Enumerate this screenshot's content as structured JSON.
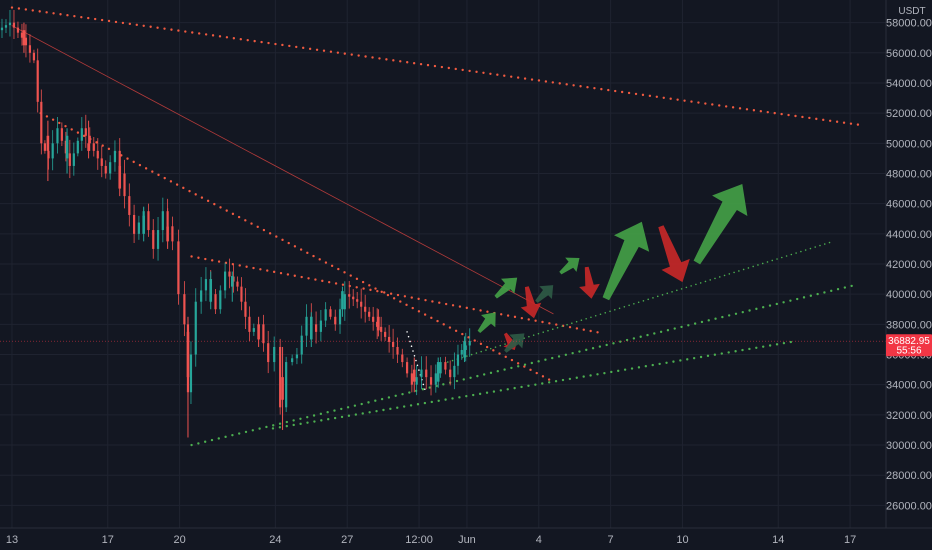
{
  "chart_data": {
    "type": "candlestick",
    "symbol_quote": "USDT",
    "y_unit_label": "USDT",
    "ylim": [
      24500,
      59500
    ],
    "y_ticks": [
      "58000.00",
      "56000.00",
      "54000.00",
      "52000.00",
      "50000.00",
      "48000.00",
      "46000.00",
      "44000.00",
      "42000.00",
      "40000.00",
      "38000.00",
      "36000.00",
      "34000.00",
      "32000.00",
      "30000.00",
      "28000.00",
      "26000.00"
    ],
    "x_tick_labels": [
      "13",
      "17",
      "20",
      "24",
      "27",
      "12:00",
      "Jun",
      "4",
      "7",
      "10",
      "14",
      "17"
    ],
    "x_tick_index": [
      0,
      4,
      7,
      11,
      14,
      17,
      19,
      22,
      25,
      28,
      32,
      35
    ],
    "xlim_index": [
      -0.5,
      36.5
    ],
    "current_price": {
      "label": "36882.95",
      "countdown": "55:56",
      "value": 36882.95
    },
    "price_path": [
      {
        "x": -0.5,
        "y": 57500
      },
      {
        "x": 0,
        "y": 58000
      },
      {
        "x": 0.5,
        "y": 57000
      },
      {
        "x": 1,
        "y": 55500
      },
      {
        "x": 1.3,
        "y": 50000
      },
      {
        "x": 1.6,
        "y": 49000
      },
      {
        "x": 2,
        "y": 51000
      },
      {
        "x": 2.5,
        "y": 48500
      },
      {
        "x": 3,
        "y": 51000
      },
      {
        "x": 3.5,
        "y": 49500
      },
      {
        "x": 4,
        "y": 48000
      },
      {
        "x": 4.4,
        "y": 49500
      },
      {
        "x": 4.8,
        "y": 46500
      },
      {
        "x": 5.2,
        "y": 44000
      },
      {
        "x": 5.6,
        "y": 45500
      },
      {
        "x": 6,
        "y": 43000
      },
      {
        "x": 6.4,
        "y": 45500
      },
      {
        "x": 6.8,
        "y": 43500
      },
      {
        "x": 7.1,
        "y": 40000
      },
      {
        "x": 7.3,
        "y": 38000
      },
      {
        "x": 7.4,
        "y": 33500
      },
      {
        "x": 7.55,
        "y": 36000
      },
      {
        "x": 7.8,
        "y": 39500
      },
      {
        "x": 8.2,
        "y": 41000
      },
      {
        "x": 8.6,
        "y": 39000
      },
      {
        "x": 9,
        "y": 41500
      },
      {
        "x": 9.5,
        "y": 40500
      },
      {
        "x": 10,
        "y": 37500
      },
      {
        "x": 10.4,
        "y": 38000
      },
      {
        "x": 10.8,
        "y": 35500
      },
      {
        "x": 11.1,
        "y": 36500
      },
      {
        "x": 11.3,
        "y": 32500
      },
      {
        "x": 11.6,
        "y": 35500
      },
      {
        "x": 12,
        "y": 36000
      },
      {
        "x": 12.4,
        "y": 38500
      },
      {
        "x": 12.8,
        "y": 37500
      },
      {
        "x": 13.2,
        "y": 39000
      },
      {
        "x": 13.6,
        "y": 38000
      },
      {
        "x": 14,
        "y": 40000
      },
      {
        "x": 14.5,
        "y": 39500
      },
      {
        "x": 15,
        "y": 38500
      },
      {
        "x": 15.5,
        "y": 37500
      },
      {
        "x": 16,
        "y": 36500
      },
      {
        "x": 16.4,
        "y": 35500
      },
      {
        "x": 16.8,
        "y": 34000
      },
      {
        "x": 17.2,
        "y": 35000
      },
      {
        "x": 17.6,
        "y": 34000
      },
      {
        "x": 18,
        "y": 35500
      },
      {
        "x": 18.4,
        "y": 34500
      },
      {
        "x": 18.7,
        "y": 36000
      },
      {
        "x": 19.2,
        "y": 36900
      }
    ],
    "candles": [
      {
        "x": 0.5,
        "o": 57500,
        "h": 58000,
        "l": 56000,
        "c": 56500
      },
      {
        "x": 1.5,
        "o": 50500,
        "h": 51500,
        "l": 47500,
        "c": 49500
      },
      {
        "x": 2.3,
        "o": 49000,
        "h": 51000,
        "l": 48000,
        "c": 50500
      },
      {
        "x": 3.2,
        "o": 50000,
        "h": 51500,
        "l": 49000,
        "c": 49500
      },
      {
        "x": 4.5,
        "o": 48500,
        "h": 49500,
        "l": 46500,
        "c": 47000
      },
      {
        "x": 5.5,
        "o": 44000,
        "h": 45800,
        "l": 43500,
        "c": 45200
      },
      {
        "x": 6.5,
        "o": 44500,
        "h": 45700,
        "l": 43000,
        "c": 43500
      },
      {
        "x": 7.35,
        "o": 37500,
        "h": 38500,
        "l": 30500,
        "c": 34500
      },
      {
        "x": 8.3,
        "o": 39500,
        "h": 41500,
        "l": 39000,
        "c": 41000
      },
      {
        "x": 9.2,
        "o": 40500,
        "h": 41500,
        "l": 39500,
        "c": 41200
      },
      {
        "x": 10.3,
        "o": 38000,
        "h": 38500,
        "l": 36500,
        "c": 37000
      },
      {
        "x": 11.3,
        "o": 34500,
        "h": 36500,
        "l": 31000,
        "c": 33000
      },
      {
        "x": 12.5,
        "o": 37000,
        "h": 38800,
        "l": 36500,
        "c": 38500
      },
      {
        "x": 13.8,
        "o": 39000,
        "h": 40500,
        "l": 38500,
        "c": 40200
      },
      {
        "x": 15.3,
        "o": 38500,
        "h": 39000,
        "l": 37200,
        "c": 37600
      },
      {
        "x": 16.8,
        "o": 35000,
        "h": 35800,
        "l": 33500,
        "c": 34200
      },
      {
        "x": 17.8,
        "o": 34200,
        "h": 35800,
        "l": 33800,
        "c": 35500
      },
      {
        "x": 18.9,
        "o": 35800,
        "h": 37200,
        "l": 35500,
        "c": 36900
      }
    ],
    "trendlines": [
      {
        "color": "#f05a40",
        "style": "dotted",
        "x1": 0,
        "y1": 59000,
        "x2": 35.5,
        "y2": 51200
      },
      {
        "color": "#b03a3a",
        "style": "solid",
        "x1": 0,
        "y1": 57800,
        "x2": 22.6,
        "y2": 38700
      },
      {
        "color": "#f05a40",
        "style": "dotted",
        "x1": 1.2,
        "y1": 52000,
        "x2": 22.6,
        "y2": 34200
      },
      {
        "color": "#f05a40",
        "style": "dotted",
        "x1": 7.5,
        "y1": 42500,
        "x2": 24.7,
        "y2": 37400
      },
      {
        "color": "#4caf50",
        "style": "dotted",
        "x1": 7.5,
        "y1": 30000,
        "x2": 35.2,
        "y2": 40600
      },
      {
        "color": "#4caf50",
        "style": "dotted",
        "x1": 10.9,
        "y1": 31100,
        "x2": 32.8,
        "y2": 36900
      },
      {
        "color": "#4caf50",
        "style": "dotted-thin",
        "x1": 18.2,
        "y1": 35500,
        "x2": 34.3,
        "y2": 43500
      },
      {
        "color": "#ffffff",
        "style": "dotted-thin",
        "x1": 16.5,
        "y1": 37500,
        "x2": 17.3,
        "y2": 33400
      }
    ],
    "arrows": [
      {
        "dir": "up",
        "color": "#43a047",
        "x1": 19.5,
        "y1": 37500,
        "x2": 20.2,
        "y2": 38800
      },
      {
        "dir": "up",
        "color": "#43a047",
        "x1": 20.2,
        "y1": 39800,
        "x2": 21.1,
        "y2": 41100
      },
      {
        "dir": "down",
        "color": "#c62828",
        "x1": 20.6,
        "y1": 37400,
        "x2": 21.0,
        "y2": 36300
      },
      {
        "dir": "down",
        "color": "#c62828",
        "x1": 21.5,
        "y1": 40500,
        "x2": 21.8,
        "y2": 38400
      },
      {
        "dir": "up",
        "color": "#2e5a45",
        "x1": 20.6,
        "y1": 36200,
        "x2": 21.4,
        "y2": 37400
      },
      {
        "dir": "up",
        "color": "#2e5a45",
        "x1": 21.9,
        "y1": 39500,
        "x2": 22.6,
        "y2": 40600
      },
      {
        "dir": "up",
        "color": "#43a047",
        "x1": 22.9,
        "y1": 41400,
        "x2": 23.7,
        "y2": 42400
      },
      {
        "dir": "down",
        "color": "#c62828",
        "x1": 24.0,
        "y1": 41800,
        "x2": 24.2,
        "y2": 39700
      },
      {
        "dir": "up",
        "color": "#43a047",
        "x1": 24.8,
        "y1": 39700,
        "x2": 26.3,
        "y2": 44800
      },
      {
        "dir": "down",
        "color": "#c62828",
        "x1": 27.1,
        "y1": 44500,
        "x2": 28.0,
        "y2": 40800
      },
      {
        "dir": "up",
        "color": "#43a047",
        "x1": 28.6,
        "y1": 42100,
        "x2": 30.5,
        "y2": 47300
      }
    ]
  }
}
